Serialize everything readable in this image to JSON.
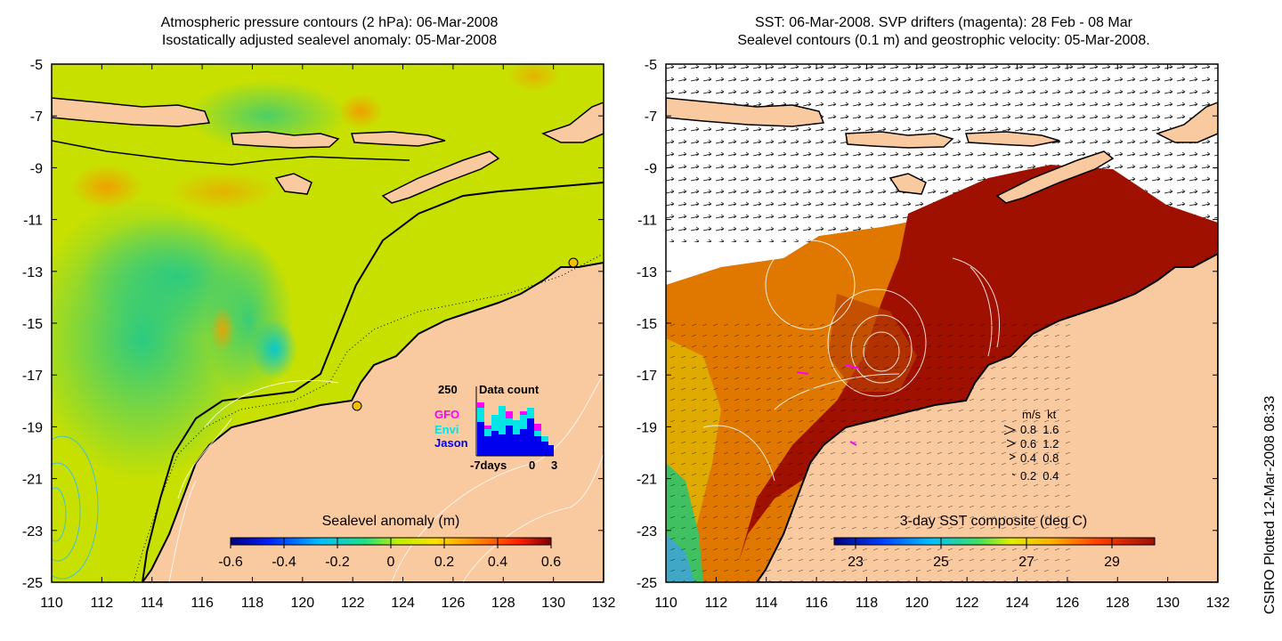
{
  "left_panel": {
    "title_line1": "Atmospheric pressure contours (2 hPa): 06-Mar-2008",
    "title_line2": "Isostatically adjusted sealevel anomaly: 05-Mar-2008",
    "colorbar": {
      "label": "Sealevel anomaly (m)",
      "ticks": [
        "-0.6",
        "-0.4",
        "-0.2",
        "0",
        "0.2",
        "0.4",
        "0.6"
      ],
      "range": [
        -0.6,
        0.6
      ]
    },
    "inset": {
      "title": "Data count",
      "ymax_label": "250",
      "legend": [
        {
          "name": "GFO",
          "color": "#ff00ff"
        },
        {
          "name": "Envi",
          "color": "#00e5e5"
        },
        {
          "name": "Jason",
          "color": "#0000ee"
        }
      ],
      "xlabel_left": "-7days",
      "xlabel_mid": "0",
      "xlabel_right": "3"
    }
  },
  "right_panel": {
    "title_line1": "SST: 06-Mar-2008. SVP drifters (magenta): 28 Feb - 08 Mar",
    "title_line2": "Sealevel contours (0.1 m) and geostrophic velocity: 05-Mar-2008.",
    "colorbar": {
      "label": "3-day SST composite (deg C)",
      "ticks": [
        "23",
        "25",
        "27",
        "29"
      ],
      "range": [
        22.5,
        30
      ]
    },
    "velocity_legend": {
      "header": "m/s  kt",
      "rows": [
        "0.8  1.6",
        "0.6  1.2",
        "0.4  0.8",
        "0.2  0.4"
      ]
    }
  },
  "axes": {
    "x_ticks": [
      "110",
      "112",
      "114",
      "116",
      "118",
      "120",
      "122",
      "124",
      "126",
      "128",
      "130",
      "132"
    ],
    "y_ticks": [
      "-5",
      "-7",
      "-9",
      "-11",
      "-13",
      "-15",
      "-17",
      "-19",
      "-21",
      "-23",
      "-25"
    ],
    "x_range": [
      110,
      132
    ],
    "y_range": [
      -25,
      -5
    ]
  },
  "credit": "CSIRO Plotted 12-Mar-2008 08:33",
  "colors": {
    "land": "#f9c9a0",
    "sla_background": "#c4e000",
    "sst_warm": "#a01000"
  }
}
